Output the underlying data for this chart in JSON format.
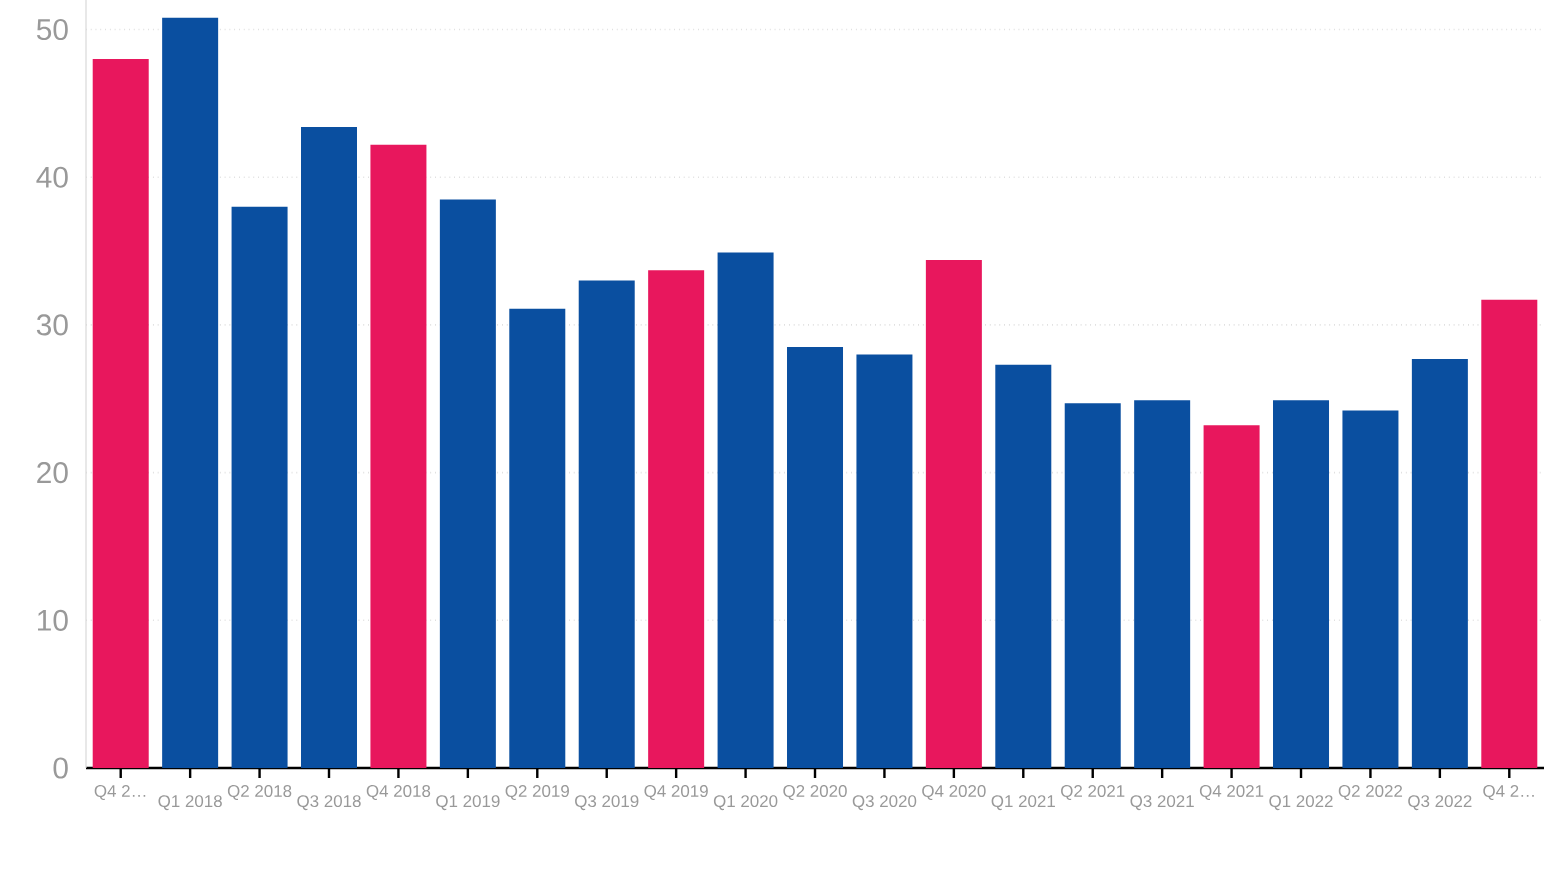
{
  "chart_data": {
    "type": "bar",
    "categories": [
      "Q4 2…",
      "Q1 2018",
      "Q2 2018",
      "Q3 2018",
      "Q4 2018",
      "Q1 2019",
      "Q2 2019",
      "Q3 2019",
      "Q4 2019",
      "Q1 2020",
      "Q2 2020",
      "Q3 2020",
      "Q4 2020",
      "Q1 2021",
      "Q2 2021",
      "Q3 2021",
      "Q4 2021",
      "Q1 2022",
      "Q2 2022",
      "Q3 2022",
      "Q4 2…"
    ],
    "values": [
      48,
      50.8,
      38,
      43.4,
      42.2,
      38.5,
      31.1,
      33,
      33.7,
      34.9,
      28.5,
      28,
      34.4,
      27.3,
      24.7,
      24.9,
      23.2,
      24.9,
      24.2,
      27.7,
      31.7
    ],
    "colors": [
      "#e8175d",
      "#0a4fa0",
      "#0a4fa0",
      "#0a4fa0",
      "#e8175d",
      "#0a4fa0",
      "#0a4fa0",
      "#0a4fa0",
      "#e8175d",
      "#0a4fa0",
      "#0a4fa0",
      "#0a4fa0",
      "#e8175d",
      "#0a4fa0",
      "#0a4fa0",
      "#0a4fa0",
      "#e8175d",
      "#0a4fa0",
      "#0a4fa0",
      "#0a4fa0",
      "#e8175d"
    ],
    "ylim": [
      0,
      52
    ],
    "yticks": [
      0,
      10,
      20,
      30,
      40,
      50
    ],
    "grid": "y"
  }
}
